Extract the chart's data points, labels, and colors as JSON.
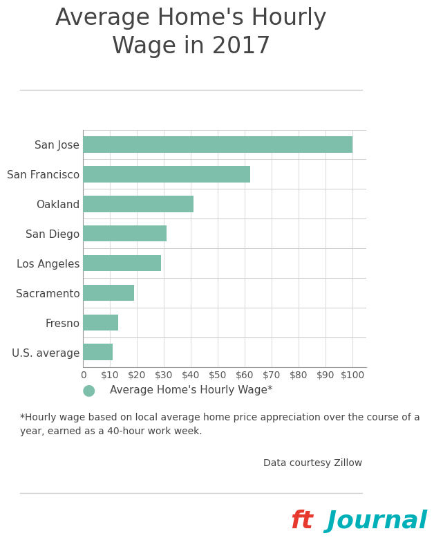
{
  "title": "Average Home's Hourly\nWage in 2017",
  "categories": [
    "San Jose",
    "San Francisco",
    "Oakland",
    "San Diego",
    "Los Angeles",
    "Sacramento",
    "Fresno",
    "U.S. average"
  ],
  "values": [
    100,
    62,
    41,
    31,
    29,
    19,
    13,
    11
  ],
  "bar_color": "#7dbfaa",
  "background_color": "#ffffff",
  "title_color": "#444444",
  "axis_label_color": "#444444",
  "tick_label_color": "#555555",
  "xlim": [
    0,
    105
  ],
  "xticks": [
    0,
    10,
    20,
    30,
    40,
    50,
    60,
    70,
    80,
    90,
    100
  ],
  "xtick_labels": [
    "0",
    "$10",
    "$20",
    "$30",
    "$40",
    "$50",
    "$60",
    "$70",
    "$80",
    "$90",
    "$100"
  ],
  "legend_label": "Average Home's Hourly Wage*",
  "footnote": "*Hourly wage based on local average home price appreciation over the course of a\nyear, earned as a 40-hour work week.",
  "data_source": "Data courtesy Zillow",
  "brand_ft": "ft",
  "brand_journal": " Journal",
  "brand_ft_color": "#e8392e",
  "brand_journal_color": "#00b0b9",
  "title_fontsize": 24,
  "tick_fontsize": 10,
  "ytick_fontsize": 11,
  "legend_fontsize": 11,
  "footnote_fontsize": 10,
  "source_fontsize": 10,
  "brand_fontsize": 26
}
